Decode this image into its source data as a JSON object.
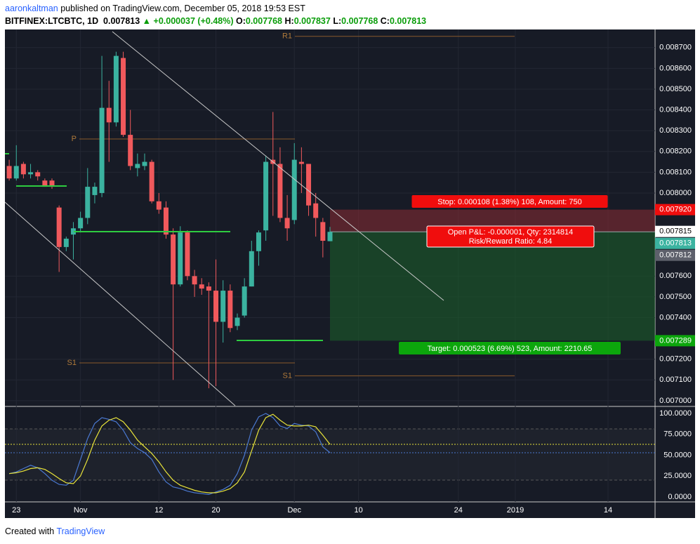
{
  "header": {
    "author": "aaronkaltman",
    "published": "published on TradingView.com, December 05, 2018 19:53 EST",
    "symbol": "BITFINEX:LTCBTC, 1D",
    "last": "0.007813",
    "change": "▲ +0.000037 (+0.48%)",
    "o_key": "O:",
    "o": "0.007768",
    "h_key": "H:",
    "h": "0.007837",
    "l_key": "L:",
    "l": "0.007768",
    "c_key": "C:",
    "c": "0.007813"
  },
  "footer": {
    "created": "Created with",
    "brand": "TradingView"
  },
  "chart_data": [
    {
      "type": "candlestick",
      "up_color": "#3bb3a0",
      "down_color": "#f0595c",
      "xlim": [
        -0.6,
        90.6
      ],
      "xticks": [
        {
          "value": 1,
          "label": "23"
        },
        {
          "value": 10,
          "label": "Nov"
        },
        {
          "value": 21,
          "label": "12"
        },
        {
          "value": 29,
          "label": "20"
        },
        {
          "value": 40,
          "label": "Dec"
        },
        {
          "value": 49,
          "label": "10"
        },
        {
          "value": 63,
          "label": "24"
        },
        {
          "value": 71,
          "label": "2019"
        },
        {
          "value": 84,
          "label": "14"
        }
      ],
      "ylim": [
        0.006976,
        0.008777
      ],
      "yticks": [
        {
          "value": 0.0087,
          "label": "0.008700"
        },
        {
          "value": 0.0086,
          "label": "0.008600"
        },
        {
          "value": 0.0085,
          "label": "0.008500"
        },
        {
          "value": 0.0084,
          "label": "0.008400"
        },
        {
          "value": 0.0083,
          "label": "0.008300"
        },
        {
          "value": 0.0082,
          "label": "0.008200"
        },
        {
          "value": 0.0081,
          "label": "0.008100"
        },
        {
          "value": 0.008,
          "label": "0.008000"
        },
        {
          "value": 0.0076,
          "label": "0.007600"
        },
        {
          "value": 0.0075,
          "label": "0.007500"
        },
        {
          "value": 0.0074,
          "label": "0.007400"
        },
        {
          "value": 0.0072,
          "label": "0.007200"
        },
        {
          "value": 0.0071,
          "label": "0.007100"
        },
        {
          "value": 0.007,
          "label": "0.007000"
        }
      ],
      "open": [
        0.00813,
        0.00807,
        0.00814,
        0.00809,
        0.0081,
        0.00806,
        0.00806,
        0.00793,
        0.00774,
        0.0078,
        0.00783,
        0.00788,
        0.00799,
        0.008,
        0.00841,
        0.00834,
        0.00865,
        0.00828,
        0.00812,
        0.00813,
        0.00815,
        0.00796,
        0.00793,
        0.0078,
        0.00756,
        0.00781,
        0.0076,
        0.00756,
        0.00755,
        0.00753,
        0.00738,
        0.00753,
        0.00736,
        0.00741,
        0.00755,
        0.00772,
        0.00782,
        0.00816,
        0.00814,
        0.00788,
        0.00787,
        0.00815,
        0.00814,
        0.00795,
        0.00786,
        0.007768
      ],
      "high": [
        0.00816,
        0.00823,
        0.00815,
        0.00814,
        0.00811,
        0.00807,
        0.00807,
        0.00794,
        0.00779,
        0.00786,
        0.00791,
        0.00812,
        0.00805,
        0.00866,
        0.00854,
        0.00868,
        0.00868,
        0.0084,
        0.00819,
        0.00819,
        0.00816,
        0.008,
        0.00796,
        0.00783,
        0.00784,
        0.00782,
        0.00763,
        0.00759,
        0.00757,
        0.00768,
        0.00758,
        0.00756,
        0.00742,
        0.00759,
        0.00777,
        0.00782,
        0.00818,
        0.00839,
        0.00822,
        0.00799,
        0.00824,
        0.00822,
        0.00814,
        0.008,
        0.00788,
        0.007837
      ],
      "low": [
        0.00806,
        0.00806,
        0.00807,
        0.00807,
        0.00806,
        0.00803,
        0.00802,
        0.00762,
        0.00772,
        0.00768,
        0.00781,
        0.00785,
        0.00795,
        0.00798,
        0.00815,
        0.00832,
        0.00827,
        0.00811,
        0.00808,
        0.00811,
        0.00795,
        0.0079,
        0.00778,
        0.0071,
        0.00755,
        0.00758,
        0.0075,
        0.00751,
        0.00706,
        0.00707,
        0.00728,
        0.00733,
        0.00734,
        0.0074,
        0.00755,
        0.00765,
        0.00777,
        0.00789,
        0.00786,
        0.00777,
        0.00785,
        0.008,
        0.00789,
        0.00779,
        0.00769,
        0.007768
      ],
      "close": [
        0.00807,
        0.00813,
        0.00809,
        0.0081,
        0.00808,
        0.00803,
        0.00803,
        0.00774,
        0.00778,
        0.00783,
        0.00788,
        0.00803,
        0.00803,
        0.00841,
        0.00834,
        0.00866,
        0.00828,
        0.00813,
        0.00814,
        0.00815,
        0.00796,
        0.00792,
        0.0078,
        0.00756,
        0.00781,
        0.0076,
        0.00756,
        0.00754,
        0.00753,
        0.00738,
        0.00753,
        0.00735,
        0.0074,
        0.00755,
        0.00772,
        0.00781,
        0.00815,
        0.00814,
        0.00788,
        0.00783,
        0.00816,
        0.00814,
        0.00794,
        0.00788,
        0.00777,
        0.007813
      ],
      "pivots": [
        {
          "label": "R1",
          "value": 0.008754
        },
        {
          "label": "P",
          "value": 0.00826
        },
        {
          "label": "S1",
          "value": 0.007182
        },
        {
          "label": "S1",
          "value": 0.00712
        }
      ],
      "position": {
        "start": 45,
        "entry": 0.007813,
        "stop": 0.00792,
        "target": 0.007289,
        "stop_label": "Stop: 0.000108 (1.38%) 108, Amount: 750",
        "pnl_label": "Open P&L: -0.000001, Qty: 2314814",
        "rr_label": "Risk/Reward Ratio: 4.84",
        "target_label": "Target: 0.000523 (6.69%) 523, Amount: 2210.65"
      },
      "price_tags": [
        {
          "value": 0.00792,
          "label": "0.007920",
          "color": "#f00d0d"
        },
        {
          "value": 0.007815,
          "label": "0.007815",
          "color": "#ffffff"
        },
        {
          "value": 0.007813,
          "label": "0.007813",
          "color": "#3bb3a0"
        },
        {
          "value": 0.007812,
          "label": "0.007812",
          "color": "#5d606b"
        },
        {
          "value": 0.007289,
          "label": "0.007289",
          "color": "#0ca60c"
        }
      ]
    },
    {
      "type": "line",
      "ylim": [
        -5.9,
        107.6
      ],
      "yticks": [
        {
          "value": 100,
          "label": "100.0000"
        },
        {
          "value": 75,
          "label": "75.0000"
        },
        {
          "value": 50,
          "label": "50.0000"
        },
        {
          "value": 25,
          "label": "25.0000"
        },
        {
          "value": 0,
          "label": "0.0000"
        }
      ],
      "series": [
        {
          "color": "#4a78d0",
          "values": [
            28,
            30,
            34,
            38,
            35,
            28,
            20,
            15,
            14,
            20,
            45,
            70,
            88,
            95,
            93,
            90,
            80,
            65,
            58,
            53,
            45,
            30,
            18,
            12,
            10,
            7,
            5,
            4,
            3,
            6,
            9,
            14,
            28,
            50,
            80,
            96,
            100,
            95,
            85,
            82,
            88,
            86,
            85,
            78,
            60,
            53
          ]
        },
        {
          "color": "#e8e33a",
          "values": [
            28,
            29,
            31,
            34,
            35,
            33,
            28,
            22,
            17,
            16,
            25,
            45,
            68,
            85,
            92,
            95,
            90,
            80,
            68,
            60,
            52,
            42,
            30,
            20,
            14,
            11,
            8,
            6,
            5,
            5,
            7,
            10,
            17,
            30,
            55,
            80,
            95,
            99,
            92,
            86,
            85,
            85,
            86,
            84,
            74,
            63
          ]
        }
      ]
    }
  ]
}
